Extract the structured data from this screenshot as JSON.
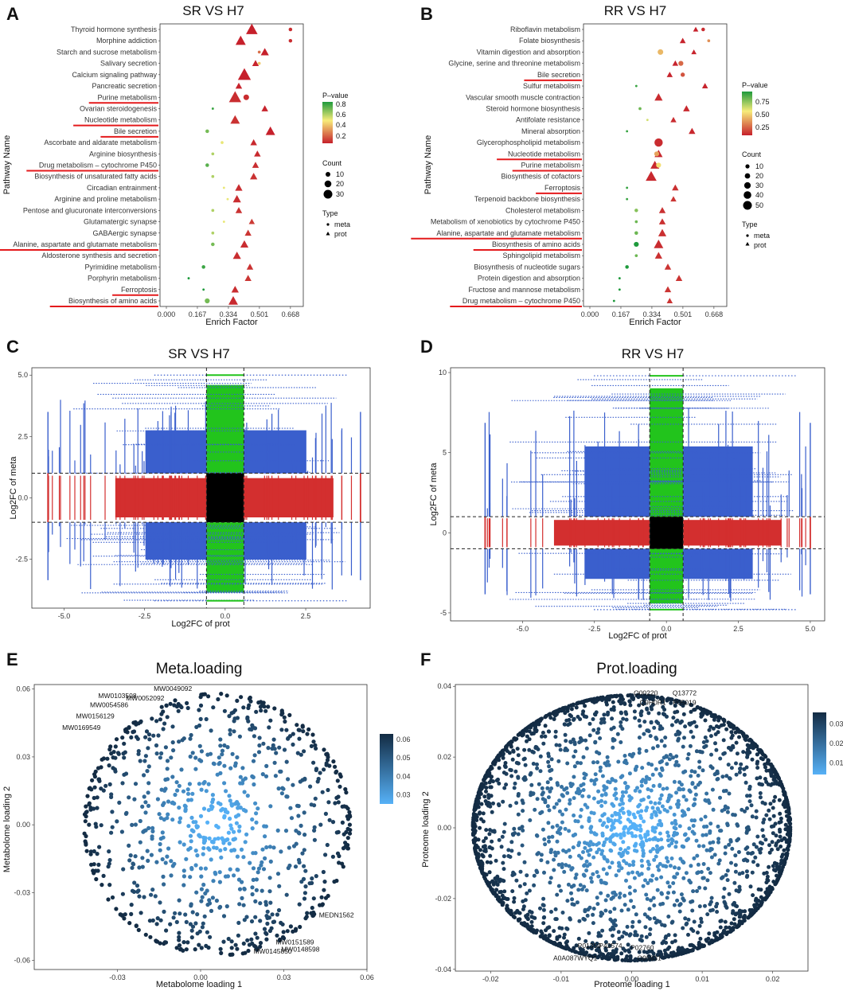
{
  "panel_labels": [
    "A",
    "B",
    "C",
    "D",
    "E",
    "F"
  ],
  "chart_data": [
    {
      "id": "A",
      "type": "scatter",
      "title": "SR VS H7",
      "xlabel": "Enrich Factor",
      "ylabel": "Pathway Name",
      "xticks": [
        "0.000",
        "0.167",
        "0.334",
        "0.501",
        "0.668"
      ],
      "xlim": [
        0,
        0.72
      ],
      "pathways": [
        "Thyroid hormone synthesis",
        "Morphine addiction",
        "Starch and sucrose metabolism",
        "Salivary secretion",
        "Calcium signaling pathway",
        "Pancreatic secretion",
        "Purine metabolism",
        "Ovarian steroidogenesis",
        "Nucleotide metabolism",
        "Bile secretion",
        "Ascorbate and aldarate metabolism",
        "Arginine biosynthesis",
        "Drug metabolism – cytochrome P450",
        "Biosynthesis of unsaturated fatty acids",
        "Circadian entrainment",
        "Arginine and proline metabolism",
        "Pentose and glucuronate interconversions",
        "Glutamatergic synapse",
        "GABAergic synapse",
        "Alanine, aspartate and glutamate metabolism",
        "Aldosterone synthesis and secretion",
        "Pyrimidine metabolism",
        "Porphyrin metabolism",
        "Ferroptosis",
        "Biosynthesis of amino acids"
      ],
      "underlined": [
        "Purine metabolism",
        "Nucleotide metabolism",
        "Bile secretion",
        "Drug metabolism – cytochrome P450",
        "Alanine, aspartate and glutamate metabolism",
        "Ferroptosis",
        "Biosynthesis of amino acids"
      ],
      "points_prot": [
        [
          0.46,
          24,
          0.02
        ],
        [
          0.4,
          20,
          0.02
        ],
        [
          0.53,
          14,
          0.02
        ],
        [
          0.48,
          10,
          0.03
        ],
        [
          0.42,
          28,
          0.02
        ],
        [
          0.39,
          10,
          0.03
        ],
        [
          0.37,
          26,
          0.05
        ],
        [
          0.53,
          10,
          0.03
        ],
        [
          0.37,
          18,
          0.06
        ],
        [
          0.56,
          18,
          0.02
        ],
        [
          0.47,
          10,
          0.04
        ],
        [
          0.49,
          10,
          0.04
        ],
        [
          0.48,
          10,
          0.05
        ],
        [
          0.47,
          12,
          0.06
        ],
        [
          0.39,
          12,
          0.05
        ],
        [
          0.38,
          14,
          0.05
        ],
        [
          0.39,
          10,
          0.06
        ],
        [
          0.46,
          8,
          0.08
        ],
        [
          0.44,
          10,
          0.07
        ],
        [
          0.42,
          14,
          0.05
        ],
        [
          0.38,
          14,
          0.05
        ],
        [
          0.45,
          10,
          0.06
        ],
        [
          0.44,
          10,
          0.07
        ],
        [
          0.37,
          12,
          0.05
        ],
        [
          0.36,
          18,
          0.04
        ]
      ],
      "points_meta": [
        [
          0.668,
          3,
          0.05
        ],
        [
          0.668,
          3,
          0.05
        ],
        [
          0.5,
          2,
          0.2
        ],
        [
          0.5,
          2,
          0.4
        ],
        null,
        null,
        [
          0.43,
          6,
          0.05
        ],
        [
          0.25,
          1,
          0.8
        ],
        null,
        [
          0.22,
          3,
          0.7
        ],
        [
          0.3,
          2,
          0.5
        ],
        [
          0.25,
          2,
          0.6
        ],
        [
          0.22,
          3,
          0.75
        ],
        [
          0.25,
          2,
          0.6
        ],
        [
          0.31,
          1,
          0.5
        ],
        [
          0.33,
          1,
          0.5
        ],
        [
          0.25,
          2,
          0.6
        ],
        [
          0.31,
          1,
          0.5
        ],
        [
          0.25,
          2,
          0.6
        ],
        [
          0.25,
          3,
          0.7
        ],
        null,
        [
          0.2,
          3,
          0.8
        ],
        [
          0.12,
          1,
          0.9
        ],
        [
          0.2,
          1,
          0.9
        ],
        [
          0.22,
          5,
          0.7
        ]
      ],
      "legend": {
        "pvalue_title": "P–value",
        "pvalue_ticks": [
          "0.8",
          "0.6",
          "0.4",
          "0.2"
        ],
        "pvalue_range": [
          0.02,
          0.85
        ],
        "count_title": "Count",
        "count_values": [
          "10",
          "20",
          "30"
        ],
        "type_title": "Type",
        "type_values": [
          "meta",
          "prot"
        ]
      }
    },
    {
      "id": "B",
      "type": "scatter",
      "title": "RR VS H7",
      "xlabel": "Enrich Factor",
      "ylabel": "Pathway Name",
      "xticks": [
        "0.000",
        "0.167",
        "0.334",
        "0.501",
        "0.668"
      ],
      "xlim": [
        0,
        0.72
      ],
      "pathways": [
        "Riboflavin metabolism",
        "Folate biosynthesis",
        "Vitamin digestion and absorption",
        "Glycine, serine and threonine metabolism",
        "Bile secretion",
        "Sulfur metabolism",
        "Vascular smooth muscle contraction",
        "Steroid hormone biosynthesis",
        "Antifolate resistance",
        "Mineral absorption",
        "Glycerophospholipid metabolism",
        "Nucleotide metabolism",
        "Purine metabolism",
        "Biosynthesis of cofactors",
        "Ferroptosis",
        "Terpenoid backbone biosynthesis",
        "Cholesterol metabolism",
        "Metabolism of xenobiotics by cytochrome P450",
        "Alanine, aspartate and glutamate metabolism",
        "Biosynthesis of amino acids",
        "Sphingolipid metabolism",
        "Biosynthesis of nucleotide sugars",
        "Protein digestion and absorption",
        "Fructose and mannose metabolism",
        "Drug metabolism – cytochrome P450"
      ],
      "underlined": [
        "Bile secretion",
        "Nucleotide metabolism",
        "Purine metabolism",
        "Ferroptosis",
        "Alanine, aspartate and glutamate metabolism",
        "Biosynthesis of amino acids",
        "Drug metabolism – cytochrome P450"
      ],
      "points_prot": [
        [
          0.57,
          6,
          0.02
        ],
        [
          0.5,
          8,
          0.03
        ],
        [
          0.56,
          6,
          0.03
        ],
        [
          0.46,
          8,
          0.03
        ],
        [
          0.43,
          8,
          0.03
        ],
        [
          0.62,
          8,
          0.03
        ],
        [
          0.37,
          14,
          0.05
        ],
        [
          0.52,
          10,
          0.04
        ],
        [
          0.45,
          8,
          0.05
        ],
        [
          0.55,
          10,
          0.04
        ],
        null,
        [
          0.37,
          14,
          0.04
        ],
        [
          0.35,
          16,
          0.04
        ],
        [
          0.33,
          22,
          0.04
        ],
        [
          0.46,
          10,
          0.06
        ],
        [
          0.45,
          8,
          0.07
        ],
        [
          0.39,
          10,
          0.06
        ],
        [
          0.39,
          10,
          0.06
        ],
        [
          0.39,
          14,
          0.06
        ],
        [
          0.37,
          18,
          0.05
        ],
        [
          0.37,
          12,
          0.06
        ],
        [
          0.42,
          10,
          0.07
        ],
        [
          0.48,
          10,
          0.07
        ],
        [
          0.42,
          10,
          0.07
        ],
        [
          0.43,
          8,
          0.07
        ]
      ],
      "points_meta": [
        [
          0.61,
          3,
          0.05
        ],
        [
          0.64,
          2,
          0.3
        ],
        [
          0.38,
          6,
          0.4
        ],
        [
          0.49,
          5,
          0.2
        ],
        [
          0.5,
          4,
          0.15
        ],
        [
          0.25,
          1,
          0.9
        ],
        null,
        [
          0.27,
          2,
          0.8
        ],
        [
          0.31,
          1,
          0.6
        ],
        [
          0.2,
          1,
          0.9
        ],
        [
          0.37,
          10,
          0.05
        ],
        [
          0.36,
          5,
          0.35
        ],
        [
          0.37,
          5,
          0.5
        ],
        null,
        [
          0.2,
          1,
          0.9
        ],
        [
          0.2,
          1,
          0.9
        ],
        [
          0.25,
          3,
          0.75
        ],
        [
          0.25,
          2,
          0.8
        ],
        [
          0.25,
          3,
          0.8
        ],
        [
          0.25,
          5,
          0.95
        ],
        [
          0.25,
          2,
          0.8
        ],
        [
          0.2,
          3,
          0.95
        ],
        [
          0.16,
          1,
          0.95
        ],
        [
          0.16,
          1,
          0.95
        ],
        [
          0.13,
          1,
          0.95
        ]
      ],
      "legend": {
        "pvalue_title": "P–value",
        "pvalue_ticks": [
          "0.75",
          "0.50",
          "0.25"
        ],
        "pvalue_range": [
          0.02,
          0.95
        ],
        "count_title": "Count",
        "count_values": [
          "10",
          "20",
          "30",
          "40",
          "50"
        ],
        "type_title": "Type",
        "type_values": [
          "meta",
          "prot"
        ]
      }
    },
    {
      "id": "C",
      "type": "scatter",
      "title": "SR VS H7",
      "xlabel": "Log2FC of prot",
      "ylabel": "Log2FC of meta",
      "xlim": [
        -6,
        4.5
      ],
      "ylim": [
        -4.5,
        5.3
      ],
      "xticks": [
        -5,
        -2.5,
        0,
        2.5
      ],
      "xtick_labels": [
        "-5.0",
        "-2.5",
        "0.0",
        "2.5"
      ],
      "yticks": [
        -2.5,
        0,
        2.5,
        5
      ],
      "ytick_labels": [
        "-2.5",
        "0.0",
        "2.5",
        "5.0"
      ],
      "prot_threshold": 0.58,
      "meta_threshold": 1,
      "prot_extent": [
        -5.5,
        4.2
      ],
      "meta_extent": [
        -4.2,
        5.0
      ],
      "colors": {
        "both": "#3a5fcd",
        "meta_only": "#22c41c",
        "prot_only": "#d32f2f",
        "none": "#000000"
      }
    },
    {
      "id": "D",
      "type": "scatter",
      "title": "RR VS H7",
      "xlabel": "Log2FC of prot",
      "ylabel": "Log2FC of meta",
      "xlim": [
        -7.5,
        5.5
      ],
      "ylim": [
        -5.5,
        10.3
      ],
      "xticks": [
        -5,
        -2.5,
        0,
        2.5,
        5
      ],
      "xtick_labels": [
        "-5.0",
        "-2.5",
        "0.0",
        "2.5",
        "5.0"
      ],
      "yticks": [
        -5,
        0,
        5,
        10
      ],
      "ytick_labels": [
        "-5",
        "0",
        "5",
        "10"
      ],
      "prot_threshold": 0.58,
      "meta_threshold": 1,
      "prot_extent": [
        -6.3,
        5.0
      ],
      "meta_extent": [
        -4.8,
        9.8
      ],
      "colors": {
        "both": "#3a5fcd",
        "meta_only": "#22c41c",
        "prot_only": "#d32f2f",
        "none": "#000000"
      }
    },
    {
      "id": "E",
      "type": "scatter",
      "title": "Meta.loading",
      "xlabel": "Metabolome loading 1",
      "ylabel": "Metabolome loading 2",
      "xlim": [
        -0.06,
        0.06
      ],
      "ylim": [
        -0.064,
        0.062
      ],
      "xticks": [
        -0.03,
        0,
        0.03,
        0.06
      ],
      "xtick_labels": [
        "-0.03",
        "0.00",
        "0.03",
        "0.06"
      ],
      "yticks": [
        -0.06,
        -0.03,
        0,
        0.03,
        0.06
      ],
      "ytick_labels": [
        "-0.06",
        "-0.03",
        "0.00",
        "0.03",
        "0.06"
      ],
      "colorbar": {
        "ticks": [
          "0.06",
          "0.05",
          "0.04",
          "0.03"
        ],
        "range": [
          0.025,
          0.063
        ]
      },
      "ellipse": {
        "cx": 0.006,
        "cy": 0.0,
        "rx": 0.048,
        "ry": 0.058
      },
      "labels": [
        {
          "text": "MW0049092",
          "x": -0.01,
          "y": 0.0592
        },
        {
          "text": "MW0103508",
          "x": -0.03,
          "y": 0.056
        },
        {
          "text": "MW0052092",
          "x": -0.02,
          "y": 0.055
        },
        {
          "text": "MW0054586",
          "x": -0.033,
          "y": 0.052
        },
        {
          "text": "MW0156129",
          "x": -0.038,
          "y": 0.047
        },
        {
          "text": "MW0169549",
          "x": -0.043,
          "y": 0.042
        },
        {
          "text": "MEDN1562",
          "x": 0.049,
          "y": -0.041
        },
        {
          "text": "MW0151589",
          "x": 0.034,
          "y": -0.053
        },
        {
          "text": "MW0148598",
          "x": 0.036,
          "y": -0.056
        },
        {
          "text": "MW0145850",
          "x": 0.026,
          "y": -0.057
        }
      ]
    },
    {
      "id": "F",
      "type": "scatter",
      "title": "Prot.loading",
      "xlabel": "Proteome loading 1",
      "ylabel": "Proteome loading 2",
      "xlim": [
        -0.025,
        0.025
      ],
      "ylim": [
        -0.0405,
        0.0405
      ],
      "xticks": [
        -0.02,
        -0.01,
        0,
        0.01,
        0.02
      ],
      "xtick_labels": [
        "-0.02",
        "-0.01",
        "0.00",
        "0.01",
        "0.02"
      ],
      "yticks": [
        -0.04,
        -0.02,
        0,
        0.02,
        0.04
      ],
      "ytick_labels": [
        "-0.04",
        "-0.02",
        "0.00",
        "0.02",
        "0.04"
      ],
      "colorbar": {
        "ticks": [
          "0.03",
          "0.02",
          "0.01"
        ],
        "range": [
          0.004,
          0.036
        ]
      },
      "ellipse": {
        "cx": 0.0,
        "cy": 0.0,
        "rx": 0.0225,
        "ry": 0.0375
      },
      "labels": [
        {
          "text": "O00220",
          "x": 0.002,
          "y": 0.0375
        },
        {
          "text": "Q13772",
          "x": 0.0075,
          "y": 0.0375
        },
        {
          "text": "P05019",
          "x": 0.0075,
          "y": 0.0348
        },
        {
          "text": "Q9H0R1",
          "x": 0.003,
          "y": 0.0348
        },
        {
          "text": "P01350",
          "x": -0.006,
          "y": -0.034
        },
        {
          "text": "P42574",
          "x": -0.003,
          "y": -0.034
        },
        {
          "text": "P02760",
          "x": 0.0015,
          "y": -0.0345
        },
        {
          "text": "O95831",
          "x": 0.0025,
          "y": -0.0375
        },
        {
          "text": "A0A087WYQ1",
          "x": -0.008,
          "y": -0.0375
        }
      ]
    }
  ]
}
